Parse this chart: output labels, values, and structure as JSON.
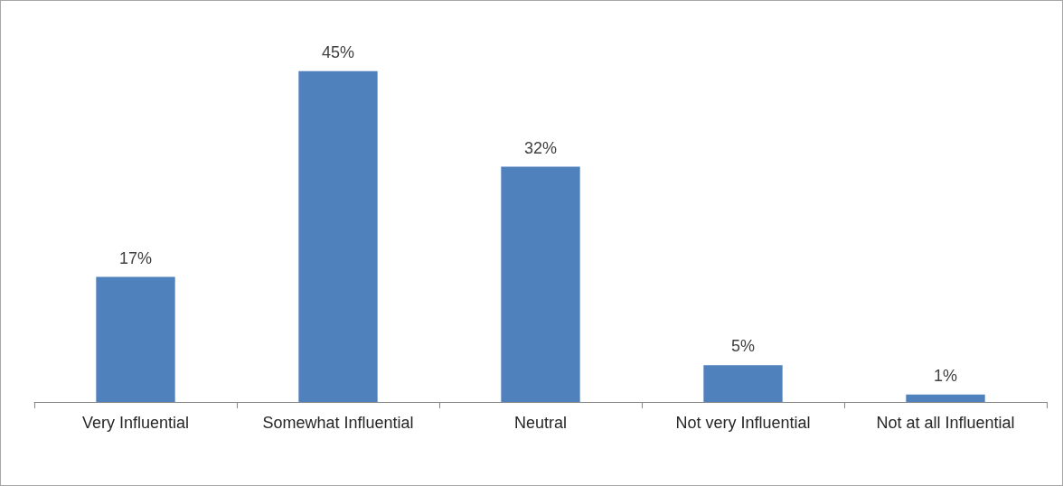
{
  "chart_data": {
    "type": "bar",
    "categories": [
      "Very Influential",
      "Somewhat Influential",
      "Neutral",
      "Not very Influential",
      "Not at all Influential"
    ],
    "values": [
      17,
      45,
      32,
      5,
      1
    ],
    "color": "#4f81bd",
    "value_labels": [
      "17%",
      "45%",
      "32%",
      "5%",
      "1%"
    ],
    "tick_labels": "x"
  }
}
